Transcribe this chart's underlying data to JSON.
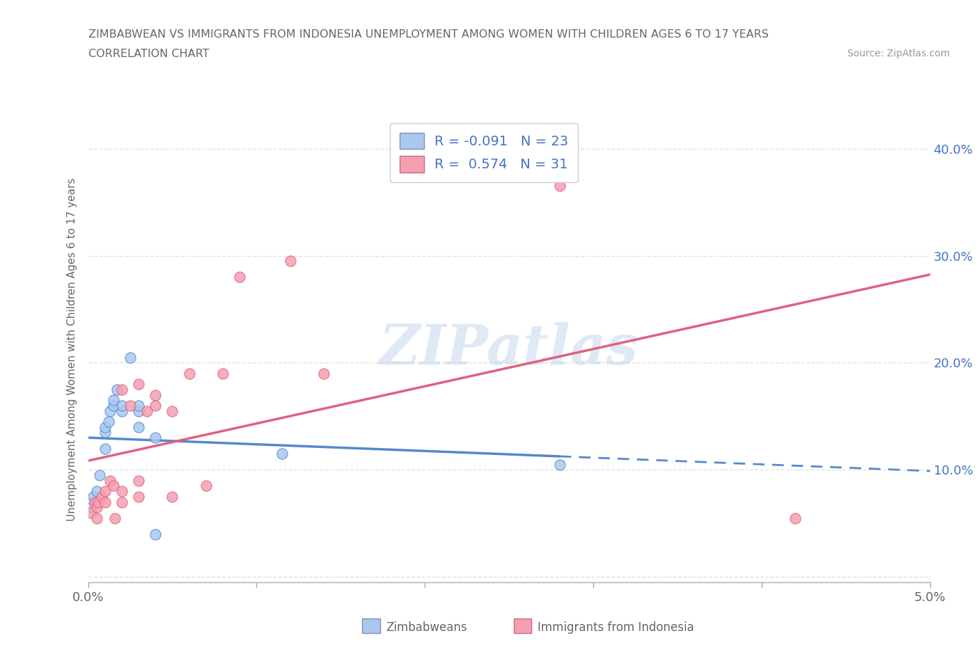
{
  "title_line1": "ZIMBABWEAN VS IMMIGRANTS FROM INDONESIA UNEMPLOYMENT AMONG WOMEN WITH CHILDREN AGES 6 TO 17 YEARS",
  "title_line2": "CORRELATION CHART",
  "source": "Source: ZipAtlas.com",
  "ylabel": "Unemployment Among Women with Children Ages 6 to 17 years",
  "xlim": [
    0.0,
    0.05
  ],
  "ylim": [
    -0.005,
    0.43
  ],
  "xticks": [
    0.0,
    0.01,
    0.02,
    0.03,
    0.04,
    0.05
  ],
  "yticks": [
    0.0,
    0.1,
    0.2,
    0.3,
    0.4
  ],
  "legend_zim_R": "-0.091",
  "legend_zim_N": "23",
  "legend_ind_R": "0.574",
  "legend_ind_N": "31",
  "zim_color": "#a8c8f0",
  "ind_color": "#f4a0b0",
  "zim_line_color": "#5588cc",
  "ind_line_color": "#e06080",
  "watermark": "ZIPatlas",
  "zim_scatter_x": [
    0.0002,
    0.0003,
    0.0005,
    0.0005,
    0.0007,
    0.001,
    0.001,
    0.001,
    0.0012,
    0.0013,
    0.0015,
    0.0015,
    0.0017,
    0.002,
    0.002,
    0.0025,
    0.003,
    0.003,
    0.003,
    0.004,
    0.004,
    0.0115,
    0.028
  ],
  "zim_scatter_y": [
    0.065,
    0.075,
    0.07,
    0.08,
    0.095,
    0.12,
    0.135,
    0.14,
    0.145,
    0.155,
    0.16,
    0.165,
    0.175,
    0.155,
    0.16,
    0.205,
    0.14,
    0.155,
    0.16,
    0.13,
    0.04,
    0.115,
    0.105
  ],
  "ind_scatter_x": [
    0.0002,
    0.0004,
    0.0005,
    0.0005,
    0.0006,
    0.0008,
    0.001,
    0.001,
    0.0013,
    0.0015,
    0.0016,
    0.002,
    0.002,
    0.002,
    0.0025,
    0.003,
    0.003,
    0.003,
    0.0035,
    0.004,
    0.004,
    0.005,
    0.005,
    0.006,
    0.007,
    0.008,
    0.009,
    0.012,
    0.014,
    0.028,
    0.042
  ],
  "ind_scatter_y": [
    0.06,
    0.07,
    0.055,
    0.065,
    0.07,
    0.075,
    0.07,
    0.08,
    0.09,
    0.085,
    0.055,
    0.07,
    0.08,
    0.175,
    0.16,
    0.075,
    0.09,
    0.18,
    0.155,
    0.16,
    0.17,
    0.075,
    0.155,
    0.19,
    0.085,
    0.19,
    0.28,
    0.295,
    0.19,
    0.365,
    0.055
  ],
  "background_color": "#ffffff",
  "grid_color": "#dddddd"
}
